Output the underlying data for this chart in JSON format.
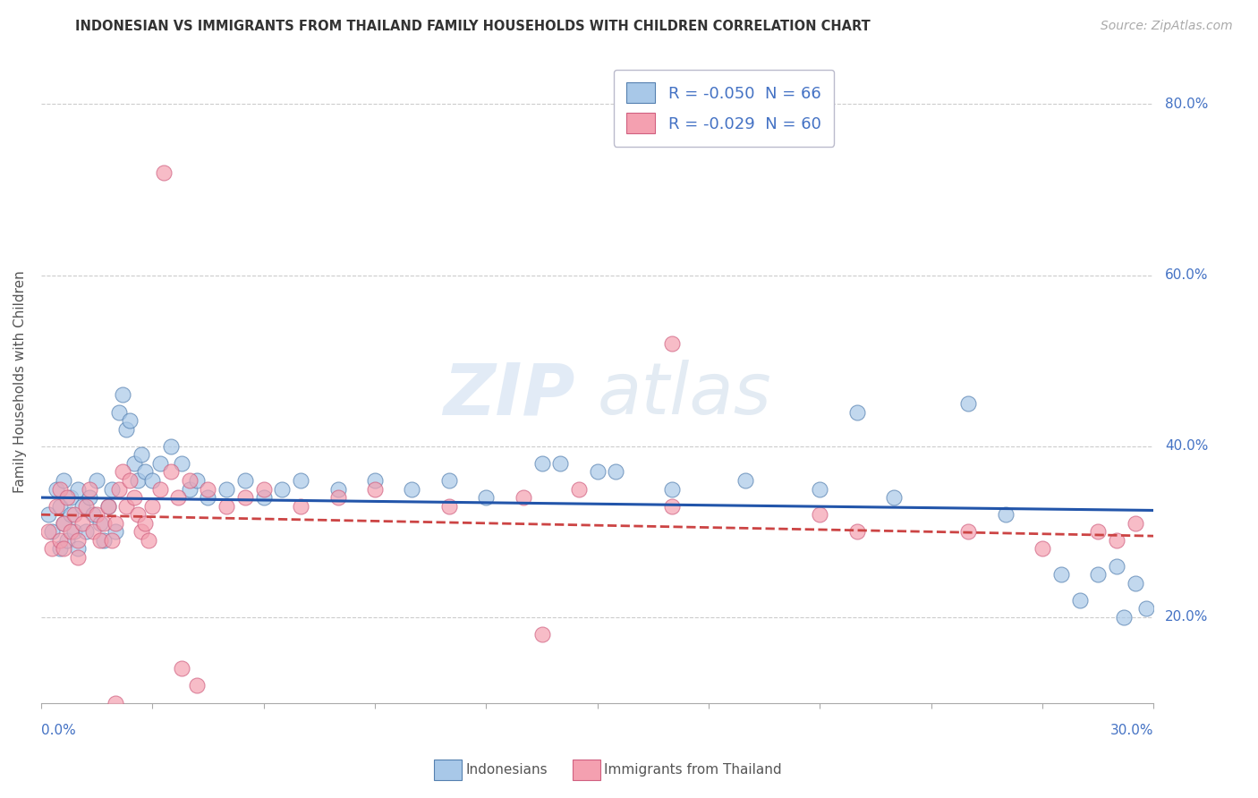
{
  "title": "INDONESIAN VS IMMIGRANTS FROM THAILAND FAMILY HOUSEHOLDS WITH CHILDREN CORRELATION CHART",
  "source": "Source: ZipAtlas.com",
  "ylabel": "Family Households with Children",
  "xmin": 0.0,
  "xmax": 30.0,
  "ymin": 10.0,
  "ymax": 85.0,
  "yticks": [
    20.0,
    40.0,
    60.0,
    80.0
  ],
  "ytick_labels": [
    "20.0%",
    "40.0%",
    "60.0%",
    "80.0%"
  ],
  "legend_blue_label": "R = -0.050  N = 66",
  "legend_pink_label": "R = -0.029  N = 60",
  "blue_color": "#a8c8e8",
  "pink_color": "#f4a0b0",
  "blue_edge_color": "#5580b0",
  "pink_edge_color": "#d06080",
  "blue_line_color": "#2255aa",
  "pink_line_color": "#cc4444",
  "watermark": "ZIPatlas",
  "indo_x": [
    0.2,
    0.3,
    0.4,
    0.5,
    0.5,
    0.6,
    0.6,
    0.7,
    0.8,
    0.8,
    0.9,
    1.0,
    1.0,
    1.1,
    1.2,
    1.3,
    1.4,
    1.5,
    1.6,
    1.7,
    1.8,
    1.9,
    2.0,
    2.1,
    2.2,
    2.3,
    2.4,
    2.5,
    2.6,
    2.7,
    2.8,
    3.0,
    3.2,
    3.5,
    3.8,
    4.0,
    4.2,
    4.5,
    5.0,
    5.5,
    6.0,
    6.5,
    7.0,
    8.0,
    9.0,
    10.0,
    11.0,
    12.0,
    14.0,
    15.5,
    17.0,
    19.0,
    21.0,
    23.0,
    25.0,
    26.0,
    27.5,
    28.5,
    29.0,
    29.5,
    29.8,
    13.5,
    22.0,
    15.0,
    28.0,
    29.2
  ],
  "indo_y": [
    32.0,
    30.0,
    35.0,
    28.0,
    33.0,
    31.0,
    36.0,
    29.0,
    32.0,
    34.0,
    30.0,
    28.0,
    35.0,
    33.0,
    30.0,
    34.0,
    32.0,
    36.0,
    31.0,
    29.0,
    33.0,
    35.0,
    30.0,
    44.0,
    46.0,
    42.0,
    43.0,
    38.0,
    36.0,
    39.0,
    37.0,
    36.0,
    38.0,
    40.0,
    38.0,
    35.0,
    36.0,
    34.0,
    35.0,
    36.0,
    34.0,
    35.0,
    36.0,
    35.0,
    36.0,
    35.0,
    36.0,
    34.0,
    38.0,
    37.0,
    35.0,
    36.0,
    35.0,
    34.0,
    45.0,
    32.0,
    25.0,
    25.0,
    26.0,
    24.0,
    21.0,
    38.0,
    44.0,
    37.0,
    22.0,
    20.0
  ],
  "thai_x": [
    0.2,
    0.3,
    0.4,
    0.5,
    0.5,
    0.6,
    0.6,
    0.7,
    0.8,
    0.9,
    1.0,
    1.0,
    1.1,
    1.2,
    1.3,
    1.4,
    1.5,
    1.6,
    1.7,
    1.8,
    1.9,
    2.0,
    2.1,
    2.2,
    2.3,
    2.4,
    2.5,
    2.6,
    2.7,
    2.8,
    2.9,
    3.0,
    3.2,
    3.5,
    3.7,
    4.0,
    4.5,
    5.0,
    5.5,
    6.0,
    7.0,
    8.0,
    9.0,
    11.0,
    13.0,
    14.5,
    17.0,
    3.3,
    21.0,
    25.0,
    27.0,
    28.5,
    29.0,
    29.5,
    17.0,
    22.0,
    3.8,
    13.5,
    4.2,
    2.0
  ],
  "thai_y": [
    30.0,
    28.0,
    33.0,
    29.0,
    35.0,
    31.0,
    28.0,
    34.0,
    30.0,
    32.0,
    29.0,
    27.0,
    31.0,
    33.0,
    35.0,
    30.0,
    32.0,
    29.0,
    31.0,
    33.0,
    29.0,
    31.0,
    35.0,
    37.0,
    33.0,
    36.0,
    34.0,
    32.0,
    30.0,
    31.0,
    29.0,
    33.0,
    35.0,
    37.0,
    34.0,
    36.0,
    35.0,
    33.0,
    34.0,
    35.0,
    33.0,
    34.0,
    35.0,
    33.0,
    34.0,
    35.0,
    33.0,
    72.0,
    32.0,
    30.0,
    28.0,
    30.0,
    29.0,
    31.0,
    52.0,
    30.0,
    14.0,
    18.0,
    12.0,
    10.0
  ]
}
